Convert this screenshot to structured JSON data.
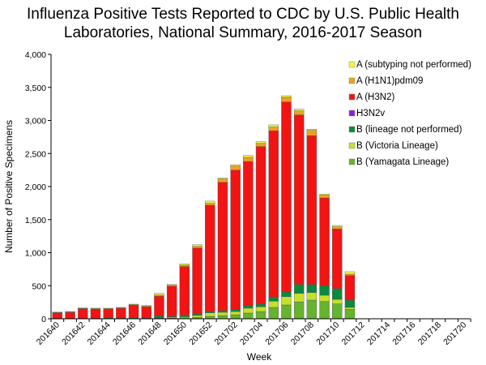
{
  "chart_data": {
    "type": "bar",
    "stacked": true,
    "title_lines": [
      "Influenza Positive Tests Reported to CDC by U.S. Public Health",
      "Laboratories, National Summary, 2016-2017 Season"
    ],
    "xlabel": "Week",
    "ylabel": "Number of Positive Specimens",
    "ylim": [
      0,
      4000
    ],
    "yticks": [
      "0",
      "500",
      "1,000",
      "1,500",
      "2,000",
      "2,500",
      "3,000",
      "3,500",
      "4,000"
    ],
    "grid": false,
    "legend_position": "top-right",
    "categories": [
      "201640",
      "201641",
      "201642",
      "201643",
      "201644",
      "201645",
      "201646",
      "201647",
      "201648",
      "201649",
      "201650",
      "201651",
      "201652",
      "201701",
      "201702",
      "201703",
      "201704",
      "201705",
      "201706",
      "201707",
      "201708",
      "201709",
      "201710",
      "201711",
      "201712",
      "201713",
      "201714",
      "201715",
      "201716",
      "201717",
      "201718",
      "201719",
      "201720"
    ],
    "xtick_labels": [
      "201640",
      "201642",
      "201644",
      "201646",
      "201648",
      "201650",
      "201652",
      "201702",
      "201704",
      "201706",
      "201708",
      "201710",
      "201712",
      "201714",
      "201716",
      "201718",
      "201720"
    ],
    "series": [
      {
        "name": "B (Yamagata Lineage)",
        "color": "#66b32e",
        "values": [
          0,
          0,
          2,
          2,
          3,
          2,
          3,
          3,
          8,
          10,
          15,
          20,
          37,
          49,
          61,
          86,
          110,
          172,
          209,
          254,
          282,
          262,
          225,
          143,
          0,
          0,
          0,
          0,
          0,
          0,
          0,
          0,
          0
        ]
      },
      {
        "name": "B (Victoria Lineage)",
        "color": "#c5e02a",
        "values": [
          0,
          0,
          0,
          0,
          2,
          2,
          2,
          2,
          5,
          12,
          15,
          30,
          53,
          49,
          49,
          74,
          70,
          94,
          126,
          130,
          115,
          94,
          69,
          29,
          0,
          0,
          0,
          0,
          0,
          0,
          0,
          0,
          0
        ]
      },
      {
        "name": "B (lineage not performed)",
        "color": "#0a8a3c",
        "values": [
          5,
          5,
          3,
          3,
          10,
          5,
          10,
          5,
          30,
          12,
          25,
          20,
          20,
          25,
          33,
          36,
          41,
          61,
          70,
          135,
          122,
          143,
          164,
          110,
          0,
          0,
          0,
          0,
          0,
          0,
          0,
          0,
          0
        ]
      },
      {
        "name": "H3N2v",
        "color": "#8a1ee0",
        "values": [
          0,
          0,
          0,
          0,
          0,
          0,
          0,
          0,
          0,
          0,
          0,
          0,
          0,
          0,
          0,
          0,
          0,
          0,
          0,
          0,
          0,
          0,
          0,
          0,
          0,
          0,
          0,
          0,
          0,
          0,
          0,
          0,
          0
        ]
      },
      {
        "name": "A (H3N2)",
        "color": "#f21313",
        "values": [
          85,
          92,
          145,
          140,
          130,
          150,
          190,
          170,
          300,
          460,
          735,
          1000,
          1608,
          1942,
          2106,
          2184,
          2384,
          2516,
          2875,
          2565,
          2250,
          1329,
          900,
          372,
          0,
          0,
          0,
          0,
          0,
          0,
          0,
          0,
          0
        ]
      },
      {
        "name": "A (H1N1)pdm09",
        "color": "#f0a020",
        "values": [
          5,
          6,
          8,
          8,
          8,
          6,
          8,
          10,
          16,
          12,
          20,
          26,
          29,
          50,
          62,
          62,
          49,
          57,
          70,
          61,
          81,
          41,
          32,
          21,
          0,
          0,
          0,
          0,
          0,
          0,
          0,
          0,
          0
        ]
      },
      {
        "name": "A (subtyping not performed)",
        "color": "#f5f542",
        "values": [
          7,
          7,
          6,
          7,
          7,
          7,
          8,
          10,
          25,
          13,
          20,
          25,
          33,
          12,
          20,
          28,
          25,
          33,
          24,
          25,
          17,
          17,
          21,
          37,
          0,
          0,
          0,
          0,
          0,
          0,
          0,
          0,
          0
        ]
      }
    ]
  }
}
